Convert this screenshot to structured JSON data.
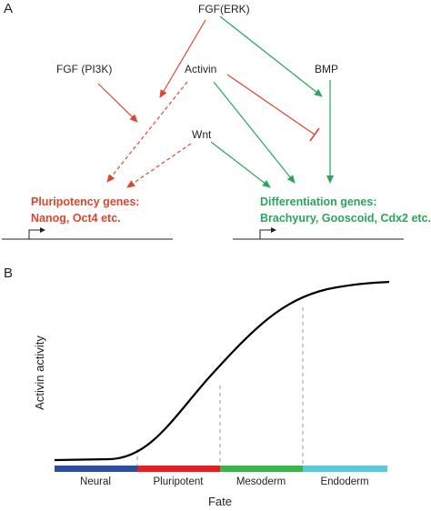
{
  "panel_a": {
    "label": "A",
    "signals": {
      "fgf_erk": "FGF(ERK)",
      "fgf_pi3k": "FGF (PI3K)",
      "activin": "Activin",
      "bmp": "BMP",
      "wnt": "Wnt"
    },
    "pluripotency_genes": {
      "line1": "Pluripotency genes:",
      "line2": "Nanog, Oct4 etc."
    },
    "differentiation_genes": {
      "line1": "Differentiation genes:",
      "line2": "Brachyury, Gooscoid, Cdx2 etc."
    }
  },
  "panel_b": {
    "label": "B",
    "y_axis_label": "Activin  activity",
    "x_axis_label": "Fate",
    "fate_segments": [
      {
        "label": "Neural",
        "color": "#2e4ea0"
      },
      {
        "label": "Pluripotent",
        "color": "#e31e24"
      },
      {
        "label": "Mesoderm",
        "color": "#3ab54a"
      },
      {
        "label": "Endoderm",
        "color": "#5bc8dc"
      }
    ]
  },
  "colors": {
    "red_arrow": "#e0442f",
    "green_arrow": "#2aa65a",
    "pluripotency_text": "#e0442f",
    "differentiation_text": "#2aa65a",
    "curve": "#000000",
    "dashed": "#9a9a9a"
  }
}
